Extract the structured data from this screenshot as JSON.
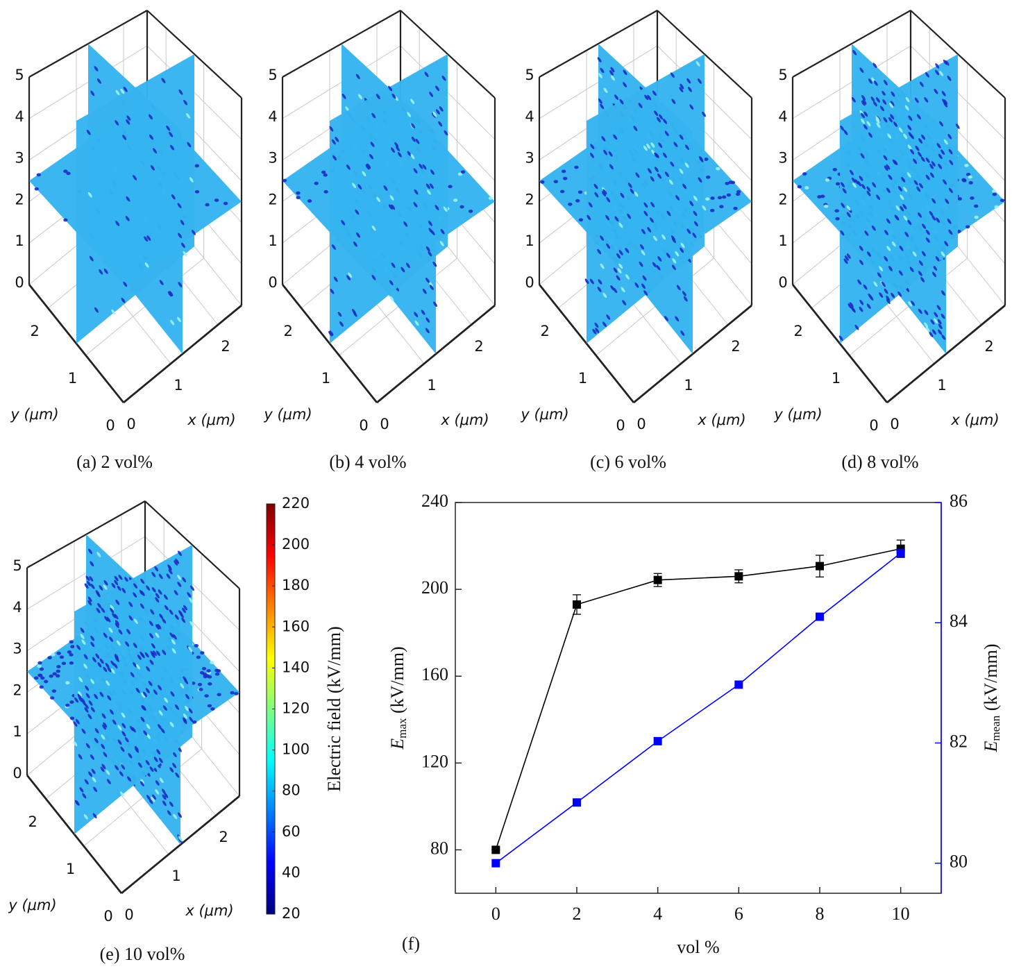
{
  "chart_data": [
    {
      "type": "slice3d",
      "caption": "(a) 2 vol%",
      "xlabel": "x (μm)",
      "ylabel": "y (μm)",
      "xlim": [
        0,
        2.5
      ],
      "ylim": [
        0,
        2.5
      ],
      "zlim": [
        0,
        5
      ],
      "xticks": [
        0,
        1,
        2
      ],
      "yticks": [
        0,
        1,
        2
      ],
      "zticks": [
        0,
        1,
        2,
        3,
        4,
        5
      ]
    },
    {
      "type": "slice3d",
      "caption": "(b) 4 vol%",
      "xlabel": "x (μm)",
      "ylabel": "y (μm)",
      "xlim": [
        0,
        2.5
      ],
      "ylim": [
        0,
        2.5
      ],
      "zlim": [
        0,
        5
      ],
      "xticks": [
        0,
        1,
        2
      ],
      "yticks": [
        0,
        1,
        2
      ],
      "zticks": [
        0,
        1,
        2,
        3,
        4,
        5
      ]
    },
    {
      "type": "slice3d",
      "caption": "(c) 6 vol%",
      "xlabel": "x (μm)",
      "ylabel": "y (μm)",
      "xlim": [
        0,
        2.5
      ],
      "ylim": [
        0,
        2.5
      ],
      "zlim": [
        0,
        5
      ],
      "xticks": [
        0,
        1,
        2
      ],
      "yticks": [
        0,
        1,
        2
      ],
      "zticks": [
        0,
        1,
        2,
        3,
        4,
        5
      ]
    },
    {
      "type": "slice3d",
      "caption": "(d) 8 vol%",
      "xlabel": "x (μm)",
      "ylabel": "y (μm)",
      "xlim": [
        0,
        2.5
      ],
      "ylim": [
        0,
        2.5
      ],
      "zlim": [
        0,
        5
      ],
      "xticks": [
        0,
        1,
        2
      ],
      "yticks": [
        0,
        1,
        2
      ],
      "zticks": [
        0,
        1,
        2,
        3,
        4,
        5
      ]
    },
    {
      "type": "slice3d",
      "caption": "(e) 10 vol%",
      "xlabel": "x (μm)",
      "ylabel": "y (μm)",
      "xlim": [
        0,
        2.5
      ],
      "ylim": [
        0,
        2.5
      ],
      "zlim": [
        0,
        5
      ],
      "xticks": [
        0,
        1,
        2
      ],
      "yticks": [
        0,
        1,
        2
      ],
      "zticks": [
        0,
        1,
        2,
        3,
        4,
        5
      ]
    },
    {
      "type": "colorbar",
      "label": "Electric field (kV/mm)",
      "lim": [
        20,
        220
      ],
      "ticks": [
        20,
        40,
        60,
        80,
        100,
        120,
        140,
        160,
        180,
        200,
        220
      ],
      "colors": [
        "#00007f",
        "#0000ff",
        "#0080ff",
        "#00ffff",
        "#80ff80",
        "#ffff00",
        "#ff8000",
        "#ff0000",
        "#7f0000"
      ]
    },
    {
      "type": "line",
      "panel_label": "(f)",
      "xlabel": "vol %",
      "ylabel": [
        "E",
        "max",
        " (kV/mm)"
      ],
      "y2label": [
        "E",
        "mean",
        " (kV/mm)"
      ],
      "x": [
        0,
        2,
        4,
        6,
        8,
        10
      ],
      "xlim": [
        -1,
        11
      ],
      "xticks": [
        0,
        2,
        4,
        6,
        8,
        10
      ],
      "ylim": [
        60,
        240
      ],
      "yticks": [
        80,
        120,
        160,
        200,
        240
      ],
      "y2lim": [
        79.5,
        86
      ],
      "y2ticks": [
        80,
        82,
        84,
        86
      ],
      "series": [
        {
          "color": "#000000",
          "values": [
            80,
            193,
            204.3,
            206,
            210.7,
            218.7
          ],
          "errors": [
            0,
            4.5,
            3,
            3,
            5,
            4
          ]
        },
        {
          "color": "#0000ff",
          "axis": "y2",
          "values": [
            80,
            81.01,
            82.03,
            82.97,
            84.1,
            85.16
          ]
        }
      ]
    }
  ]
}
